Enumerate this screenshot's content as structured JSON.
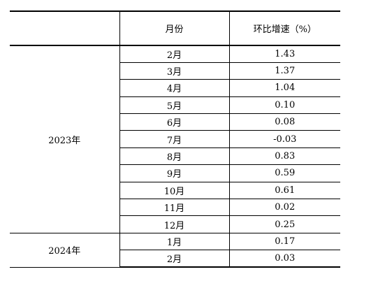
{
  "table": {
    "headers": {
      "year": "",
      "month": "月份",
      "value": "环比增速（%）"
    },
    "groups": [
      {
        "year": "2023年",
        "rows": [
          {
            "month": "2月",
            "value": "1.43"
          },
          {
            "month": "3月",
            "value": "1.37"
          },
          {
            "month": "4月",
            "value": "1.04"
          },
          {
            "month": "5月",
            "value": "0.10"
          },
          {
            "month": "6月",
            "value": "0.08"
          },
          {
            "month": "7月",
            "value": "-0.03"
          },
          {
            "month": "8月",
            "value": "0.83"
          },
          {
            "month": "9月",
            "value": "0.59"
          },
          {
            "month": "10月",
            "value": "0.61"
          },
          {
            "month": "11月",
            "value": "0.02"
          },
          {
            "month": "12月",
            "value": "0.25"
          }
        ]
      },
      {
        "year": "2024年",
        "rows": [
          {
            "month": "1月",
            "value": "0.17"
          },
          {
            "month": "2月",
            "value": "0.03"
          }
        ]
      }
    ]
  }
}
